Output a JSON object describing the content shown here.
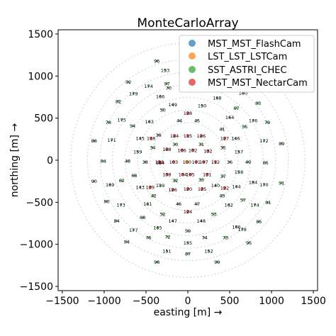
{
  "chart_data": {
    "type": "scatter",
    "title": "MonteCarloArray",
    "xlabel": "easting [m] →",
    "ylabel": "northing [m] →",
    "xlim": [
      -1550,
      1550
    ],
    "ylim": [
      -1550,
      1550
    ],
    "xticks": [
      "−1500",
      "−1000",
      "−500",
      "0",
      "500",
      "1000",
      "1500"
    ],
    "yticks": [
      "−1500",
      "−1000",
      "−500",
      "0",
      "500",
      "1000",
      "1500"
    ],
    "grid": false,
    "legend_position": "top-right",
    "series": [
      {
        "name": "MST_MST_FlashCam",
        "color": "#1f77b4"
      },
      {
        "name": "LST_LST_LSTCam",
        "color": "#ff7f0e"
      },
      {
        "name": "SST_ASTRI_CHEC",
        "color": "#2ca02c"
      },
      {
        "name": "MST_MST_NectarCam",
        "color": "#d62728"
      }
    ],
    "telescopes": [
      [
        "96",
        -370,
        1180,
        "SST"
      ],
      [
        "153",
        -270,
        1070,
        "SST"
      ],
      [
        "92",
        -710,
        930,
        "SST"
      ],
      [
        "174",
        -470,
        880,
        "SST"
      ],
      [
        "97",
        -250,
        910,
        "SST"
      ],
      [
        "70",
        -230,
        860,
        "SST"
      ],
      [
        "180",
        660,
        800,
        "SST"
      ],
      [
        "179",
        -650,
        790,
        "SST"
      ],
      [
        "166",
        -330,
        760,
        "SST"
      ],
      [
        "168",
        350,
        740,
        "SST"
      ],
      [
        "82",
        -830,
        700,
        "SST"
      ],
      [
        "83",
        840,
        680,
        "SST"
      ],
      [
        "149",
        -180,
        660,
        "SST"
      ],
      [
        "150",
        170,
        650,
        "SST"
      ],
      [
        "67",
        580,
        620,
        "SST"
      ],
      [
        "50",
        -300,
        600,
        "SST"
      ],
      [
        "128",
        0,
        560,
        "MST"
      ],
      [
        "164",
        500,
        510,
        "SST"
      ],
      [
        "175",
        -790,
        480,
        "SST"
      ],
      [
        "78",
        -950,
        450,
        "SST"
      ],
      [
        "163",
        -460,
        460,
        "SST"
      ],
      [
        "44",
        -100,
        470,
        "SST"
      ],
      [
        "45",
        110,
        470,
        "SST"
      ],
      [
        "176",
        780,
        470,
        "SST"
      ],
      [
        "79",
        950,
        450,
        "SST"
      ],
      [
        "54",
        -660,
        410,
        "SST"
      ],
      [
        "55",
        680,
        400,
        "SST"
      ],
      [
        "41",
        410,
        370,
        "SST"
      ],
      [
        "39",
        -350,
        300,
        "SST"
      ],
      [
        "124",
        -160,
        290,
        "MST"
      ],
      [
        "115",
        0,
        290,
        "MST"
      ],
      [
        "126",
        160,
        290,
        "MST"
      ],
      [
        "171",
        -910,
        240,
        "SST"
      ],
      [
        "145",
        -570,
        260,
        "SST"
      ],
      [
        "118",
        -440,
        260,
        "MST"
      ],
      [
        "127",
        440,
        260,
        "MST"
      ],
      [
        "146",
        570,
        260,
        "SST"
      ],
      [
        "172",
        910,
        230,
        "SST"
      ],
      [
        "88",
        -1120,
        230,
        "SST"
      ],
      [
        "89",
        1120,
        200,
        "SST"
      ],
      [
        "30",
        -150,
        190,
        "SST"
      ],
      [
        "31",
        160,
        190,
        "SST"
      ],
      [
        "34",
        -420,
        150,
        "SST"
      ],
      [
        "35",
        420,
        150,
        "SST"
      ],
      [
        "108",
        -250,
        130,
        "MST"
      ],
      [
        "106",
        -70,
        120,
        "MST"
      ],
      [
        "102",
        60,
        120,
        "MST"
      ],
      [
        "132",
        240,
        110,
        "MST"
      ],
      [
        "159",
        -600,
        100,
        "SST"
      ],
      [
        "157",
        610,
        100,
        "SST"
      ],
      [
        "64",
        -1010,
        -10,
        "SST"
      ],
      [
        "48",
        -720,
        -10,
        "SST"
      ],
      [
        "38",
        -510,
        -20,
        "SST"
      ],
      [
        "123",
        -340,
        -20,
        "MST"
      ],
      [
        "134",
        -330,
        -30,
        "MST"
      ],
      [
        "103",
        -170,
        -20,
        "MST"
      ],
      [
        "100",
        -10,
        -20,
        "LST"
      ],
      [
        "101",
        100,
        -20,
        "MST"
      ],
      [
        "107",
        190,
        -20,
        "MST"
      ],
      [
        "112",
        330,
        -20,
        "MST"
      ],
      [
        "36",
        500,
        -20,
        "SST"
      ],
      [
        "49",
        720,
        -20,
        "SST"
      ],
      [
        "65",
        930,
        -30,
        "SST"
      ],
      [
        "138",
        -250,
        -170,
        "MST"
      ],
      [
        "104",
        -60,
        -170,
        "MST"
      ],
      [
        "105",
        30,
        -170,
        "MST"
      ],
      [
        "131",
        230,
        -170,
        "MST"
      ],
      [
        "37",
        420,
        -190,
        "SST"
      ],
      [
        "32",
        -150,
        -240,
        "SST"
      ],
      [
        "33",
        160,
        -230,
        "SST"
      ],
      [
        "158",
        610,
        -140,
        "SST"
      ],
      [
        "62",
        -790,
        -240,
        "SST"
      ],
      [
        "139",
        -330,
        -300,
        "SST"
      ],
      [
        "140",
        330,
        -300,
        "SST"
      ],
      [
        "184",
        780,
        -260,
        "SST"
      ],
      [
        "68",
        -640,
        -180,
        "SST"
      ],
      [
        "90",
        -1120,
        -250,
        "SST"
      ],
      [
        "169",
        -930,
        -290,
        "SST"
      ],
      [
        "143",
        -570,
        -320,
        "SST"
      ],
      [
        "129",
        -450,
        -320,
        "MST"
      ],
      [
        "126",
        -180,
        -350,
        "MST"
      ],
      [
        "120",
        0,
        -340,
        "MST"
      ],
      [
        "125",
        170,
        -340,
        "MST"
      ],
      [
        "122",
        440,
        -330,
        "MST"
      ],
      [
        "144",
        580,
        -310,
        "SST"
      ],
      [
        "170",
        910,
        -290,
        "SST"
      ],
      [
        "91",
        1120,
        -270,
        "SST"
      ],
      [
        "42",
        -410,
        -420,
        "SST"
      ],
      [
        "43",
        410,
        -420,
        "SST"
      ],
      [
        "57",
        660,
        -470,
        "SST"
      ],
      [
        "80",
        -970,
        -490,
        "SST"
      ],
      [
        "173",
        -800,
        -530,
        "SST"
      ],
      [
        "161",
        -480,
        -520,
        "SST"
      ],
      [
        "46",
        -110,
        -520,
        "SST"
      ],
      [
        "47",
        110,
        -520,
        "SST"
      ],
      [
        "162",
        490,
        -530,
        "SST"
      ],
      [
        "174",
        800,
        -530,
        "SST"
      ],
      [
        "81",
        960,
        -500,
        "SST"
      ],
      [
        "124",
        0,
        -610,
        "MST"
      ],
      [
        "52",
        -300,
        -640,
        "SST"
      ],
      [
        "53",
        310,
        -640,
        "SST"
      ],
      [
        "84",
        -850,
        -720,
        "SST"
      ],
      [
        "68",
        -540,
        -680,
        "SST"
      ],
      [
        "147",
        -180,
        -720,
        "SST"
      ],
      [
        "148",
        160,
        -720,
        "SST"
      ],
      [
        "166",
        580,
        -790,
        "SST"
      ],
      [
        "85",
        850,
        -730,
        "SST"
      ],
      [
        "177",
        -650,
        -830,
        "SST"
      ],
      [
        "165",
        -360,
        -800,
        "SST"
      ],
      [
        "59",
        0,
        -840,
        "SST"
      ],
      [
        "178",
        650,
        -820,
        "SST"
      ],
      [
        "94",
        -730,
        -970,
        "SST"
      ],
      [
        "76",
        -470,
        -920,
        "SST"
      ],
      [
        "72",
        -240,
        -910,
        "SST"
      ],
      [
        "74",
        200,
        -920,
        "SST"
      ],
      [
        "73",
        450,
        -920,
        "SST"
      ],
      [
        "95",
        730,
        -980,
        "SST"
      ],
      [
        "155",
        0,
        -980,
        "SST"
      ],
      [
        "151",
        -250,
        -1080,
        "SST"
      ],
      [
        "87",
        0,
        -1110,
        "SST"
      ],
      [
        "152",
        250,
        -1080,
        "SST"
      ],
      [
        "98",
        -370,
        -1210,
        "SST"
      ],
      [
        "99",
        350,
        -1210,
        "SST"
      ]
    ]
  }
}
